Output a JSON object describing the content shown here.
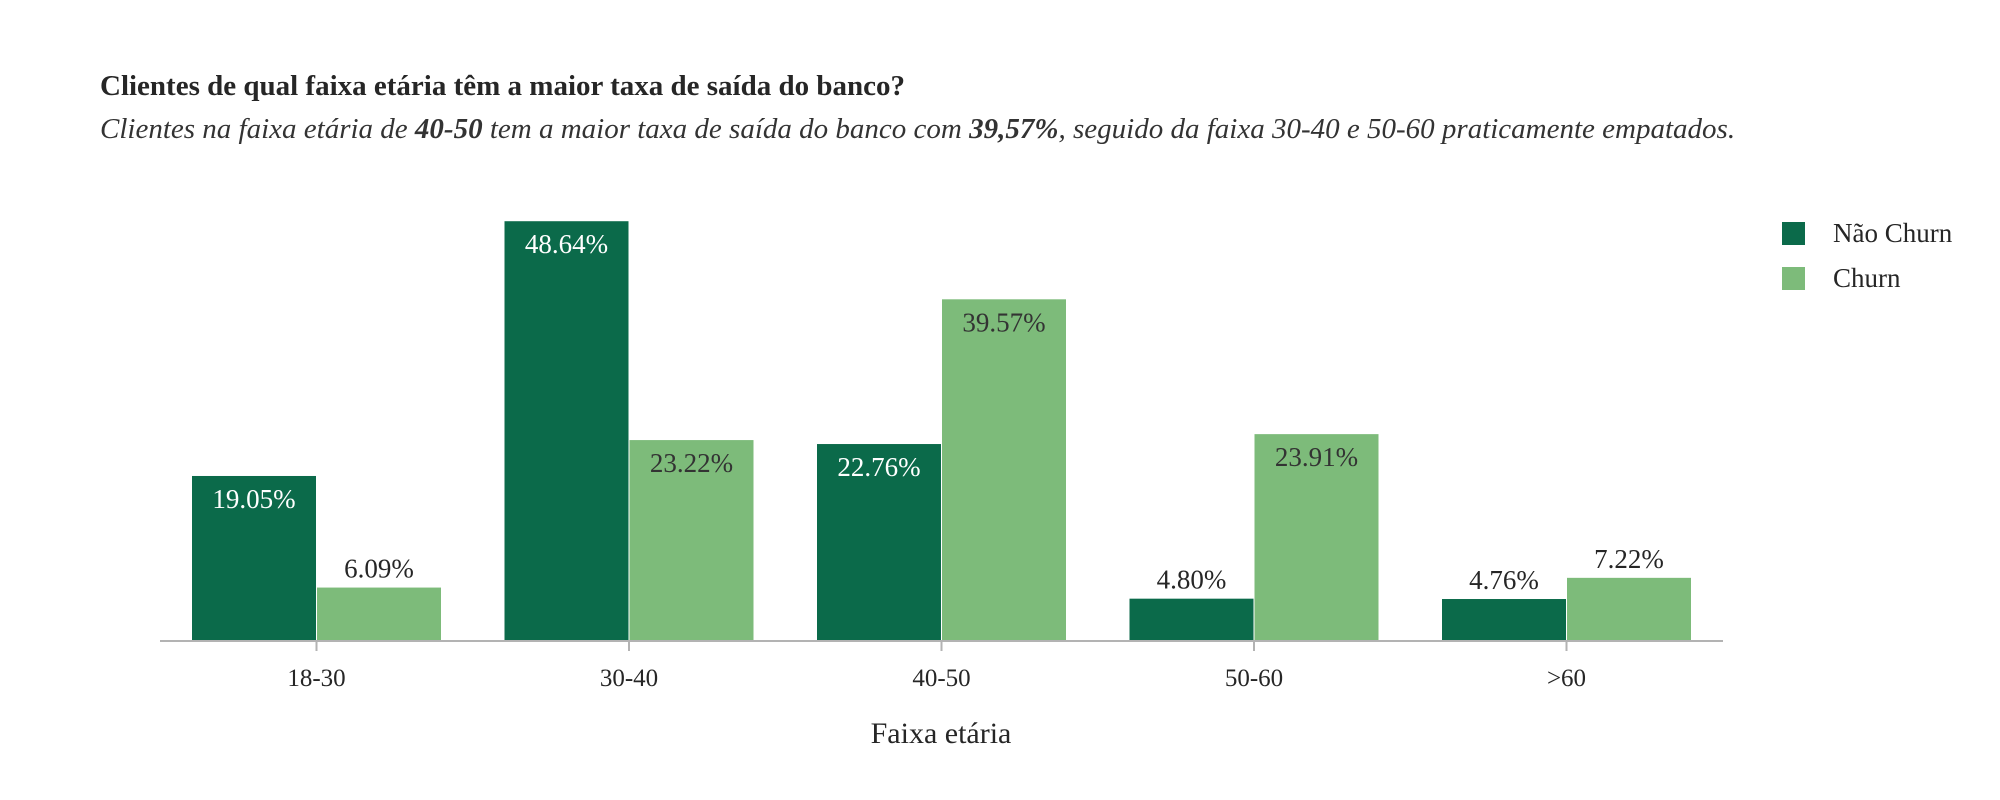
{
  "title": "Clientes de qual faixa etária têm a maior taxa de saída do banco?",
  "subtitle": {
    "p1": "Clientes na faixa etária de ",
    "b1": "40-50",
    "p2": " tem a maior taxa de saída do banco com ",
    "b2": "39,57%",
    "p3": ", seguido da faixa 30-40 e 50-60 praticamente empatados."
  },
  "chart_data": {
    "type": "bar",
    "xlabel": "Faixa etária",
    "ylabel": "",
    "categories": [
      "18-30",
      "30-40",
      "40-50",
      "50-60",
      ">60"
    ],
    "series": [
      {
        "name": "Não Churn",
        "color": "#0b6a4a",
        "values": [
          19.05,
          48.64,
          22.76,
          4.8,
          4.76
        ],
        "labels": [
          "19.05%",
          "48.64%",
          "22.76%",
          "4.80%",
          "4.76%"
        ]
      },
      {
        "name": "Churn",
        "color": "#7dbb7a",
        "values": [
          6.09,
          23.22,
          39.57,
          23.91,
          7.22
        ],
        "labels": [
          "6.09%",
          "23.22%",
          "39.57%",
          "23.91%",
          "7.22%"
        ]
      }
    ],
    "ylim": [
      0,
      50
    ],
    "legend": "top-right",
    "grid": false
  }
}
